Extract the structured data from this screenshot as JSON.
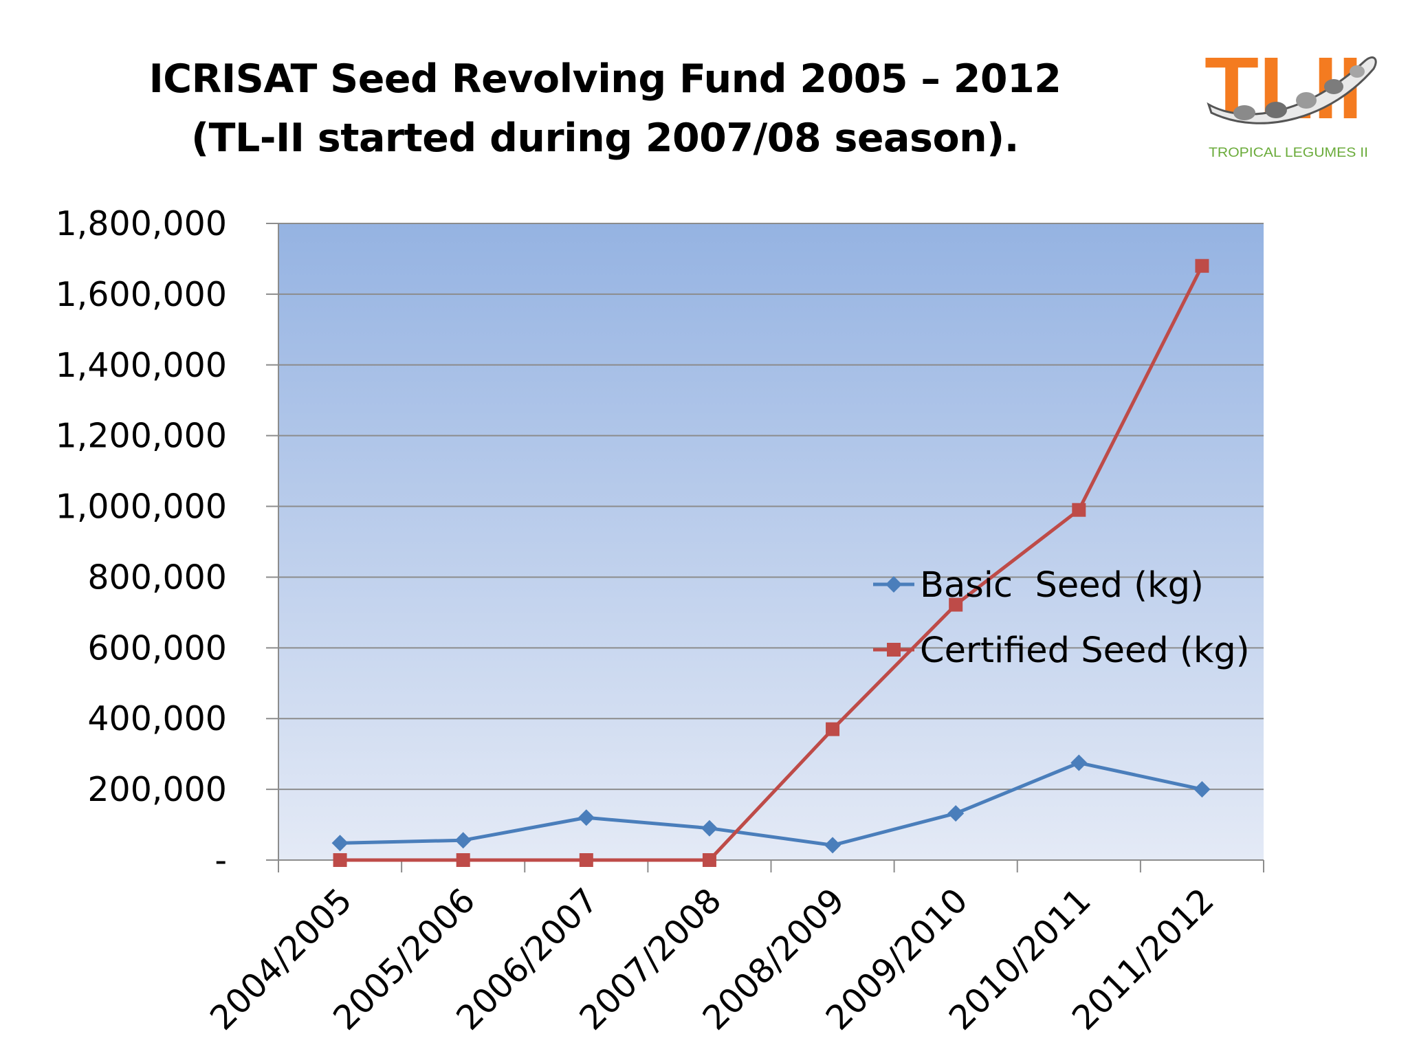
{
  "slide": {
    "title_line1": "ICRISAT Seed Revolving Fund 2005 – 2012",
    "title_line2": "(TL-II started during 2007/08 season)."
  },
  "logo": {
    "letters": "TLII",
    "caption": "TROPICAL LEGUMES II",
    "accent_color": "#F47B20",
    "caption_color": "#6AAB3A",
    "icon": "legume-pod-icon"
  },
  "chart_data": {
    "type": "line",
    "title": "",
    "xlabel": "",
    "ylabel": "",
    "categories": [
      "2004/2005",
      "2005/2006",
      "2006/2007",
      "2007/2008",
      "2008/2009",
      "2009/2010",
      "2010/2011",
      "2011/2012"
    ],
    "ylim": [
      0,
      1800000
    ],
    "yticks": [
      0,
      200000,
      400000,
      600000,
      800000,
      1000000,
      1200000,
      1400000,
      1600000,
      1800000
    ],
    "ytick_labels": [
      "-",
      "200,000",
      "400,000",
      "600,000",
      "800,000",
      "1,000,000",
      "1,200,000",
      "1,400,000",
      "1,600,000",
      "1,800,000"
    ],
    "grid": true,
    "legend_position": "center-right",
    "background_gradient": [
      "#95B3E2",
      "#E4EAF6"
    ],
    "series": [
      {
        "name": "Basic  Seed (kg)",
        "marker": "diamond",
        "color": "#4A7EBB",
        "values": [
          48000,
          56000,
          120000,
          90000,
          42000,
          132000,
          275000,
          200000
        ]
      },
      {
        "name": "Certified Seed (kg)",
        "marker": "square",
        "color": "#BE4B48",
        "values": [
          0,
          0,
          0,
          0,
          370000,
          722000,
          990000,
          1680000
        ]
      }
    ]
  }
}
